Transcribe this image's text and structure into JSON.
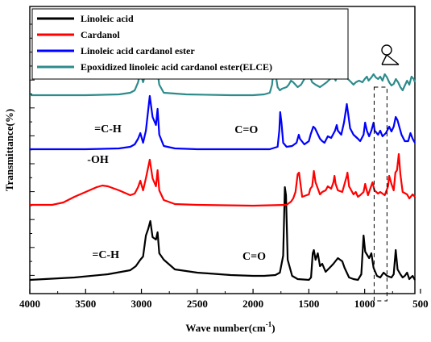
{
  "chart_data": {
    "type": "line",
    "title": "",
    "xlabel": "Wave number(cm",
    "xlabel_sup": "-1",
    "xlabel_close": ")",
    "ylabel": "Transmittance(%)",
    "x_reversed": true,
    "xlim": [
      4000,
      550
    ],
    "xticks": [
      "4000",
      "3500",
      "3000",
      "2500",
      "2000",
      "1500",
      "1000",
      "500"
    ],
    "y_tick_labels_shown": false,
    "legend_position": "top-left",
    "series": [
      {
        "name": "Linoleic acid",
        "color": "#000000",
        "offset": 0,
        "points": [
          [
            4000,
            5
          ],
          [
            3600,
            8
          ],
          [
            3300,
            12
          ],
          [
            3100,
            17
          ],
          [
            3050,
            22
          ],
          [
            3010,
            30
          ],
          [
            2985,
            34
          ],
          [
            2960,
            60
          ],
          [
            2940,
            68
          ],
          [
            2920,
            78
          ],
          [
            2900,
            58
          ],
          [
            2870,
            55
          ],
          [
            2855,
            64
          ],
          [
            2840,
            38
          ],
          [
            2800,
            30
          ],
          [
            2700,
            18
          ],
          [
            2500,
            14
          ],
          [
            2200,
            11
          ],
          [
            2000,
            10
          ],
          [
            1900,
            10
          ],
          [
            1800,
            11
          ],
          [
            1760,
            14
          ],
          [
            1730,
            35
          ],
          [
            1715,
            120
          ],
          [
            1705,
            110
          ],
          [
            1690,
            30
          ],
          [
            1650,
            10
          ],
          [
            1600,
            6
          ],
          [
            1500,
            5
          ],
          [
            1480,
            8
          ],
          [
            1465,
            38
          ],
          [
            1455,
            42
          ],
          [
            1440,
            30
          ],
          [
            1420,
            38
          ],
          [
            1400,
            22
          ],
          [
            1380,
            25
          ],
          [
            1350,
            15
          ],
          [
            1300,
            22
          ],
          [
            1280,
            25
          ],
          [
            1240,
            32
          ],
          [
            1200,
            28
          ],
          [
            1180,
            20
          ],
          [
            1140,
            8
          ],
          [
            1100,
            6
          ],
          [
            1060,
            5
          ],
          [
            1030,
            12
          ],
          [
            1010,
            60
          ],
          [
            995,
            40
          ],
          [
            960,
            32
          ],
          [
            940,
            38
          ],
          [
            920,
            20
          ],
          [
            890,
            10
          ],
          [
            860,
            8
          ],
          [
            830,
            14
          ],
          [
            800,
            10
          ],
          [
            760,
            8
          ],
          [
            740,
            12
          ],
          [
            722,
            42
          ],
          [
            705,
            18
          ],
          [
            680,
            12
          ],
          [
            660,
            8
          ],
          [
            640,
            10
          ],
          [
            620,
            14
          ],
          [
            600,
            6
          ],
          [
            570,
            10
          ],
          [
            550,
            5
          ]
        ]
      },
      {
        "name": "Cardanol",
        "color": "#ff0000",
        "offset": 96,
        "points": [
          [
            4000,
            2
          ],
          [
            3800,
            2
          ],
          [
            3700,
            5
          ],
          [
            3600,
            12
          ],
          [
            3500,
            18
          ],
          [
            3400,
            24
          ],
          [
            3350,
            26
          ],
          [
            3300,
            25
          ],
          [
            3200,
            20
          ],
          [
            3100,
            14
          ],
          [
            3060,
            16
          ],
          [
            3030,
            24
          ],
          [
            3010,
            32
          ],
          [
            2985,
            20
          ],
          [
            2960,
            35
          ],
          [
            2925,
            58
          ],
          [
            2900,
            35
          ],
          [
            2870,
            25
          ],
          [
            2855,
            45
          ],
          [
            2840,
            20
          ],
          [
            2800,
            8
          ],
          [
            2700,
            3
          ],
          [
            2500,
            2
          ],
          [
            2000,
            1
          ],
          [
            1700,
            2
          ],
          [
            1660,
            6
          ],
          [
            1640,
            10
          ],
          [
            1620,
            18
          ],
          [
            1600,
            40
          ],
          [
            1588,
            42
          ],
          [
            1575,
            28
          ],
          [
            1560,
            12
          ],
          [
            1500,
            15
          ],
          [
            1487,
            22
          ],
          [
            1470,
            25
          ],
          [
            1455,
            44
          ],
          [
            1440,
            30
          ],
          [
            1400,
            15
          ],
          [
            1380,
            18
          ],
          [
            1350,
            20
          ],
          [
            1330,
            25
          ],
          [
            1300,
            22
          ],
          [
            1280,
            30
          ],
          [
            1270,
            38
          ],
          [
            1260,
            28
          ],
          [
            1240,
            20
          ],
          [
            1200,
            18
          ],
          [
            1160,
            38
          ],
          [
            1154,
            42
          ],
          [
            1140,
            25
          ],
          [
            1100,
            15
          ],
          [
            1080,
            18
          ],
          [
            1060,
            12
          ],
          [
            1040,
            14
          ],
          [
            1010,
            18
          ],
          [
            995,
            28
          ],
          [
            985,
            22
          ],
          [
            970,
            14
          ],
          [
            950,
            22
          ],
          [
            930,
            30
          ],
          [
            912,
            20
          ],
          [
            880,
            16
          ],
          [
            860,
            18
          ],
          [
            820,
            14
          ],
          [
            790,
            25
          ],
          [
            780,
            38
          ],
          [
            760,
            28
          ],
          [
            740,
            20
          ],
          [
            725,
            42
          ],
          [
            710,
            45
          ],
          [
            694,
            65
          ],
          [
            680,
            40
          ],
          [
            660,
            18
          ],
          [
            620,
            15
          ],
          [
            600,
            10
          ],
          [
            570,
            15
          ],
          [
            550,
            12
          ]
        ]
      },
      {
        "name": "Linoleic acid cardanol ester",
        "color": "#0000ff",
        "offset": 165,
        "points": [
          [
            4000,
            2
          ],
          [
            3500,
            2
          ],
          [
            3200,
            3
          ],
          [
            3100,
            5
          ],
          [
            3060,
            8
          ],
          [
            3030,
            15
          ],
          [
            3010,
            22
          ],
          [
            2985,
            10
          ],
          [
            2960,
            25
          ],
          [
            2925,
            68
          ],
          [
            2900,
            42
          ],
          [
            2870,
            32
          ],
          [
            2855,
            52
          ],
          [
            2840,
            20
          ],
          [
            2800,
            6
          ],
          [
            2700,
            3
          ],
          [
            2500,
            2
          ],
          [
            2000,
            2
          ],
          [
            1850,
            2
          ],
          [
            1780,
            5
          ],
          [
            1765,
            25
          ],
          [
            1757,
            48
          ],
          [
            1745,
            35
          ],
          [
            1730,
            10
          ],
          [
            1700,
            5
          ],
          [
            1650,
            6
          ],
          [
            1610,
            10
          ],
          [
            1590,
            20
          ],
          [
            1580,
            15
          ],
          [
            1540,
            8
          ],
          [
            1500,
            12
          ],
          [
            1485,
            20
          ],
          [
            1460,
            30
          ],
          [
            1445,
            28
          ],
          [
            1400,
            15
          ],
          [
            1380,
            12
          ],
          [
            1360,
            10
          ],
          [
            1330,
            18
          ],
          [
            1300,
            16
          ],
          [
            1265,
            25
          ],
          [
            1250,
            32
          ],
          [
            1240,
            25
          ],
          [
            1210,
            20
          ],
          [
            1185,
            35
          ],
          [
            1160,
            58
          ],
          [
            1150,
            48
          ],
          [
            1130,
            28
          ],
          [
            1100,
            20
          ],
          [
            1060,
            15
          ],
          [
            1040,
            12
          ],
          [
            1010,
            20
          ],
          [
            996,
            35
          ],
          [
            980,
            25
          ],
          [
            960,
            18
          ],
          [
            940,
            25
          ],
          [
            920,
            35
          ],
          [
            910,
            25
          ],
          [
            880,
            20
          ],
          [
            860,
            25
          ],
          [
            840,
            18
          ],
          [
            810,
            22
          ],
          [
            780,
            30
          ],
          [
            760,
            24
          ],
          [
            740,
            30
          ],
          [
            722,
            42
          ],
          [
            706,
            38
          ],
          [
            690,
            30
          ],
          [
            670,
            20
          ],
          [
            640,
            12
          ],
          [
            610,
            12
          ],
          [
            590,
            22
          ],
          [
            570,
            15
          ],
          [
            550,
            10
          ]
        ]
      },
      {
        "name": "Epoxidized linoleic acid cardanol ester(ELCE)",
        "color": "#2e8b8b",
        "offset": 232,
        "points": [
          [
            4000,
            2
          ],
          [
            3500,
            2
          ],
          [
            3200,
            3
          ],
          [
            3100,
            5
          ],
          [
            3060,
            8
          ],
          [
            3030,
            18
          ],
          [
            3010,
            30
          ],
          [
            2985,
            18
          ],
          [
            2960,
            30
          ],
          [
            2925,
            48
          ],
          [
            2910,
            40
          ],
          [
            2895,
            38
          ],
          [
            2875,
            35
          ],
          [
            2855,
            30
          ],
          [
            2840,
            15
          ],
          [
            2800,
            5
          ],
          [
            2600,
            3
          ],
          [
            2200,
            2
          ],
          [
            2000,
            2
          ],
          [
            1900,
            3
          ],
          [
            1850,
            5
          ],
          [
            1830,
            15
          ],
          [
            1815,
            35
          ],
          [
            1800,
            30
          ],
          [
            1780,
            12
          ],
          [
            1760,
            8
          ],
          [
            1740,
            10
          ],
          [
            1700,
            12
          ],
          [
            1680,
            15
          ],
          [
            1660,
            20
          ],
          [
            1640,
            18
          ],
          [
            1600,
            12
          ],
          [
            1570,
            15
          ],
          [
            1540,
            22
          ],
          [
            1510,
            28
          ],
          [
            1490,
            25
          ],
          [
            1470,
            18
          ],
          [
            1440,
            15
          ],
          [
            1400,
            12
          ],
          [
            1370,
            15
          ],
          [
            1340,
            18
          ],
          [
            1310,
            22
          ],
          [
            1290,
            28
          ],
          [
            1275,
            25
          ],
          [
            1260,
            20
          ],
          [
            1240,
            30
          ],
          [
            1230,
            42
          ],
          [
            1220,
            50
          ],
          [
            1200,
            40
          ],
          [
            1180,
            28
          ],
          [
            1150,
            22
          ],
          [
            1120,
            18
          ],
          [
            1100,
            15
          ],
          [
            1080,
            18
          ],
          [
            1050,
            20
          ],
          [
            1020,
            18
          ],
          [
            1000,
            22
          ],
          [
            980,
            25
          ],
          [
            965,
            20
          ],
          [
            940,
            24
          ],
          [
            920,
            28
          ],
          [
            900,
            24
          ],
          [
            880,
            22
          ],
          [
            860,
            25
          ],
          [
            840,
            20
          ],
          [
            820,
            28
          ],
          [
            800,
            24
          ],
          [
            780,
            18
          ],
          [
            760,
            14
          ],
          [
            740,
            16
          ],
          [
            720,
            22
          ],
          [
            700,
            18
          ],
          [
            680,
            12
          ],
          [
            660,
            8
          ],
          [
            640,
            14
          ],
          [
            620,
            20
          ],
          [
            600,
            15
          ],
          [
            580,
            25
          ],
          [
            560,
            22
          ],
          [
            550,
            18
          ]
        ]
      }
    ],
    "annotations": [
      {
        "text": "=C-H",
        "series": "Linoleic acid",
        "x": 3320
      },
      {
        "text": "C=O",
        "series": "Linoleic acid",
        "x": 1990
      },
      {
        "text": "-OH",
        "series": "Cardanol",
        "x": 3390
      },
      {
        "text": "=C-H",
        "series": "Linoleic acid cardanol ester",
        "x": 3300
      },
      {
        "text": "C=O",
        "series": "Linoleic acid cardanol ester",
        "x": 2060
      }
    ],
    "highlight_range": [
      915,
      800
    ]
  }
}
